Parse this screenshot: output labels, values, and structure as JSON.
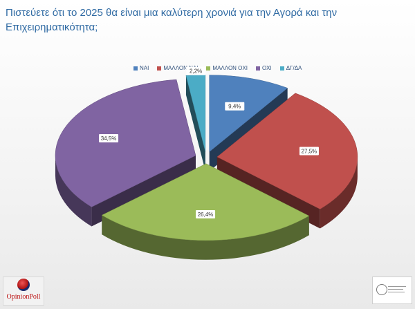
{
  "title": "Πιστεύετε ότι το 2025 θα είναι μια καλύτερη χρονιά για την Αγορά και την Επιχειρηματικότητα;",
  "chart_data": {
    "type": "pie",
    "title": "Πιστεύετε ότι το 2025 θα είναι μια καλύτερη χρονιά για την Αγορά και την Επιχειρηματικότητα;",
    "legend_position": "top",
    "three_d": true,
    "exploded": true,
    "categories": [
      "ΝΑΙ",
      "ΜΑΛΛΟΝ ΝΑΙ",
      "ΜΑΛΛΟΝ ΟΧΙ",
      "ΟΧΙ",
      "ΔΓ/ΔΑ"
    ],
    "values": [
      9.4,
      27.5,
      26.4,
      34.5,
      2.2
    ],
    "labels": [
      "9,4%",
      "27,5%",
      "26,4%",
      "34,5%",
      "2,2%"
    ],
    "colors": [
      "#4f81bd",
      "#c0504d",
      "#9bbb59",
      "#8064a2",
      "#4bacc6"
    ]
  },
  "logos": {
    "left": "OpinionPoll",
    "right": "seal-logo"
  }
}
